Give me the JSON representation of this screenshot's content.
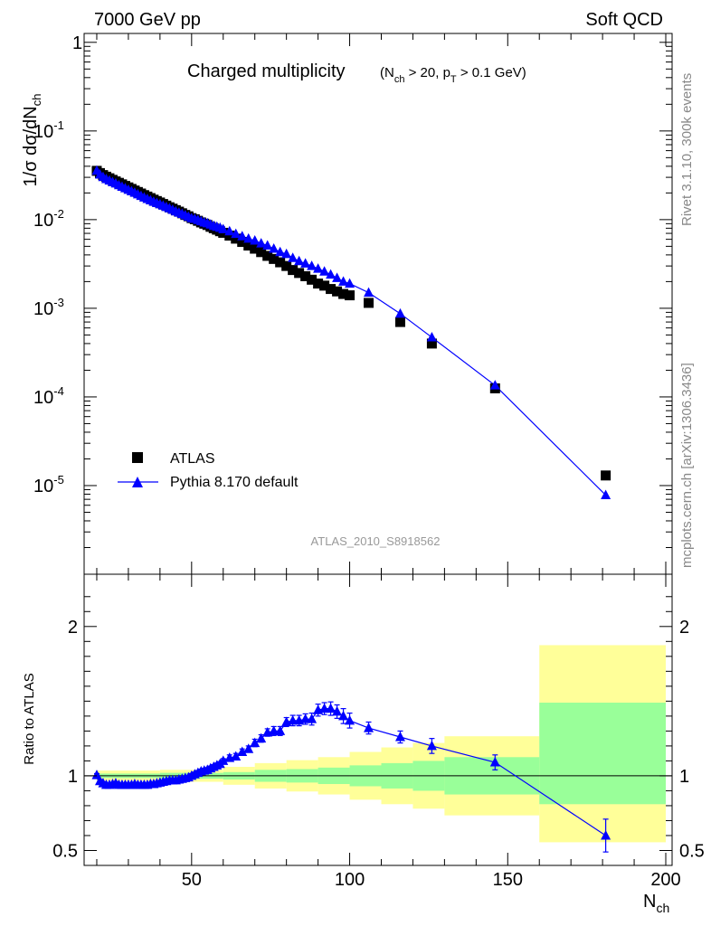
{
  "header": {
    "left": "7000 GeV pp",
    "right": "Soft QCD"
  },
  "side": {
    "rivet": "Rivet 3.1.10,  300k events",
    "mcplots": "mcplots.cern.ch [arXiv:1306.3436]"
  },
  "colors": {
    "mc": "#0000ff",
    "data": "#000000",
    "band_outer": "#ffff99",
    "band_inner": "#99ff99"
  },
  "chart_data": [
    {
      "type": "scatter",
      "title": "Charged multiplicity",
      "title_cut": "(N_ch > 20, p_T > 0.1 GeV)",
      "ylabel": "1/σ dσ/dN_ch",
      "xlabel": "N_ch",
      "xlim": [
        16,
        202
      ],
      "ylim_log10": [
        -6,
        0.1
      ],
      "y_tick_labels": [
        "10^-5",
        "10^-4",
        "10^-3",
        "10^-2",
        "10^-1",
        "1"
      ],
      "x_tick_labels": [
        "50",
        "100",
        "150",
        "200"
      ],
      "analysis_label": "ATLAS_2010_S8918562",
      "legend": [
        "ATLAS",
        "Pythia 8.170 default"
      ],
      "legend_position": "lower-left",
      "series": [
        {
          "name": "ATLAS",
          "marker": "square",
          "x": [
            20,
            21,
            22,
            23,
            24,
            25,
            26,
            27,
            28,
            29,
            30,
            31,
            32,
            33,
            34,
            35,
            36,
            37,
            38,
            39,
            40,
            41,
            42,
            43,
            44,
            45,
            46,
            47,
            48,
            49,
            50,
            51,
            52,
            53,
            54,
            55,
            56,
            57,
            58,
            59,
            60,
            62,
            64,
            66,
            68,
            70,
            72,
            74,
            76,
            78,
            80,
            82,
            84,
            86,
            88,
            90,
            92,
            94,
            96,
            98,
            100,
            106,
            116,
            126,
            146,
            181
          ],
          "y": [
            0.0355,
            0.0335,
            0.0318,
            0.0305,
            0.0293,
            0.0281,
            0.027,
            0.026,
            0.025,
            0.024,
            0.0231,
            0.0222,
            0.0213,
            0.0205,
            0.0197,
            0.0189,
            0.0182,
            0.0175,
            0.0168,
            0.0162,
            0.0156,
            0.015,
            0.0144,
            0.0138,
            0.0133,
            0.0128,
            0.0123,
            0.0118,
            0.0113,
            0.0109,
            0.0104,
            0.0101,
            0.0097,
            0.0093,
            0.009,
            0.0087,
            0.0083,
            0.008,
            0.0077,
            0.0074,
            0.0071,
            0.0066,
            0.0061,
            0.0056,
            0.0051,
            0.0047,
            0.0043,
            0.0039,
            0.0036,
            0.0033,
            0.003,
            0.0027,
            0.0025,
            0.0023,
            0.0021,
            0.0019,
            0.0018,
            0.00165,
            0.00155,
            0.00145,
            0.0014,
            0.00115,
            0.0007,
            0.0004,
            0.000125,
            1.3e-05
          ]
        },
        {
          "name": "Pythia 8.170 default",
          "marker": "triangle",
          "x": [
            20,
            21,
            22,
            23,
            24,
            25,
            26,
            27,
            28,
            29,
            30,
            31,
            32,
            33,
            34,
            35,
            36,
            37,
            38,
            39,
            40,
            41,
            42,
            43,
            44,
            45,
            46,
            47,
            48,
            49,
            50,
            51,
            52,
            53,
            54,
            55,
            56,
            57,
            58,
            59,
            60,
            62,
            64,
            66,
            68,
            70,
            72,
            74,
            76,
            78,
            80,
            82,
            84,
            86,
            88,
            90,
            92,
            94,
            96,
            98,
            100,
            106,
            116,
            126,
            146,
            181
          ],
          "y": [
            0.0357,
            0.0323,
            0.0302,
            0.0287,
            0.0276,
            0.0265,
            0.0256,
            0.0245,
            0.0235,
            0.0226,
            0.0217,
            0.0209,
            0.0201,
            0.0193,
            0.0185,
            0.0178,
            0.0171,
            0.0165,
            0.0159,
            0.0154,
            0.0149,
            0.0144,
            0.0139,
            0.0134,
            0.0129,
            0.0124,
            0.012,
            0.0116,
            0.0112,
            0.0108,
            0.0104,
            0.0102,
            0.0099,
            0.0096,
            0.0093,
            0.0091,
            0.0088,
            0.0085,
            0.0083,
            0.0081,
            0.0078,
            0.0074,
            0.0069,
            0.0065,
            0.0061,
            0.0058,
            0.0054,
            0.0051,
            0.0047,
            0.0043,
            0.0041,
            0.0037,
            0.0034,
            0.0032,
            0.003,
            0.0028,
            0.0026,
            0.0024,
            0.0022,
            0.002,
            0.0019,
            0.0015,
            0.00087,
            0.00047,
            0.000135,
            7.8e-06
          ]
        }
      ]
    },
    {
      "type": "scatter",
      "ylabel": "Ratio to ATLAS",
      "xlabel": "N_ch",
      "xlim": [
        16,
        202
      ],
      "ylim": [
        0.4,
        2.35
      ],
      "y_ticks": [
        0.5,
        1,
        2
      ],
      "y_tick_labels": [
        "0.5",
        "1",
        "2"
      ],
      "x_ticks": [
        50,
        100,
        150,
        200
      ],
      "x_tick_labels": [
        "50",
        "100",
        "150",
        "200"
      ],
      "bands": [
        {
          "x0": 20,
          "x1": 40,
          "inner": [
            0.985,
            1.015
          ],
          "outer": [
            0.965,
            1.035
          ]
        },
        {
          "x0": 40,
          "x1": 60,
          "inner": [
            0.98,
            1.02
          ],
          "outer": [
            0.96,
            1.04
          ]
        },
        {
          "x0": 60,
          "x1": 70,
          "inner": [
            0.975,
            1.025
          ],
          "outer": [
            0.94,
            1.06
          ]
        },
        {
          "x0": 70,
          "x1": 80,
          "inner": [
            0.96,
            1.04
          ],
          "outer": [
            0.915,
            1.085
          ]
        },
        {
          "x0": 80,
          "x1": 90,
          "inner": [
            0.955,
            1.045
          ],
          "outer": [
            0.895,
            1.105
          ]
        },
        {
          "x0": 90,
          "x1": 100,
          "inner": [
            0.945,
            1.055
          ],
          "outer": [
            0.875,
            1.125
          ]
        },
        {
          "x0": 100,
          "x1": 110,
          "inner": [
            0.93,
            1.07
          ],
          "outer": [
            0.84,
            1.16
          ]
        },
        {
          "x0": 110,
          "x1": 120,
          "inner": [
            0.915,
            1.085
          ],
          "outer": [
            0.81,
            1.19
          ]
        },
        {
          "x0": 120,
          "x1": 130,
          "inner": [
            0.9,
            1.1
          ],
          "outer": [
            0.78,
            1.22
          ]
        },
        {
          "x0": 130,
          "x1": 160,
          "inner": [
            0.875,
            1.125
          ],
          "outer": [
            0.735,
            1.265
          ]
        },
        {
          "x0": 160,
          "x1": 200,
          "inner": [
            0.81,
            1.49
          ],
          "outer": [
            0.555,
            1.875
          ]
        }
      ],
      "series": [
        {
          "name": "Pythia 8.170 default / ATLAS",
          "marker": "triangle",
          "x": [
            20,
            21,
            22,
            23,
            24,
            25,
            26,
            27,
            28,
            29,
            30,
            31,
            32,
            33,
            34,
            35,
            36,
            37,
            38,
            39,
            40,
            41,
            42,
            43,
            44,
            45,
            46,
            47,
            48,
            49,
            50,
            51,
            52,
            53,
            54,
            55,
            56,
            57,
            58,
            59,
            60,
            62,
            64,
            66,
            68,
            70,
            72,
            74,
            76,
            78,
            80,
            82,
            84,
            86,
            88,
            90,
            92,
            94,
            96,
            98,
            100,
            106,
            116,
            126,
            146,
            181
          ],
          "y": [
            1.005,
            0.965,
            0.95,
            0.94,
            0.94,
            0.945,
            0.95,
            0.94,
            0.94,
            0.94,
            0.94,
            0.94,
            0.945,
            0.94,
            0.94,
            0.94,
            0.94,
            0.945,
            0.945,
            0.95,
            0.955,
            0.96,
            0.965,
            0.97,
            0.97,
            0.97,
            0.975,
            0.98,
            0.985,
            0.99,
            1.0,
            1.01,
            1.02,
            1.03,
            1.035,
            1.04,
            1.05,
            1.06,
            1.07,
            1.08,
            1.1,
            1.12,
            1.13,
            1.16,
            1.18,
            1.22,
            1.25,
            1.29,
            1.3,
            1.3,
            1.36,
            1.37,
            1.37,
            1.38,
            1.38,
            1.44,
            1.45,
            1.45,
            1.43,
            1.4,
            1.37,
            1.32,
            1.26,
            1.2,
            1.09,
            0.6
          ],
          "err": [
            0.01,
            0.01,
            0.01,
            0.01,
            0.01,
            0.01,
            0.01,
            0.01,
            0.01,
            0.01,
            0.01,
            0.01,
            0.01,
            0.01,
            0.01,
            0.01,
            0.01,
            0.01,
            0.01,
            0.01,
            0.01,
            0.01,
            0.01,
            0.01,
            0.01,
            0.01,
            0.01,
            0.01,
            0.01,
            0.01,
            0.015,
            0.015,
            0.015,
            0.015,
            0.015,
            0.015,
            0.015,
            0.015,
            0.015,
            0.015,
            0.015,
            0.02,
            0.02,
            0.02,
            0.02,
            0.025,
            0.025,
            0.025,
            0.03,
            0.03,
            0.03,
            0.035,
            0.035,
            0.035,
            0.04,
            0.04,
            0.04,
            0.045,
            0.045,
            0.05,
            0.05,
            0.04,
            0.04,
            0.05,
            0.05,
            0.11
          ]
        }
      ]
    }
  ]
}
